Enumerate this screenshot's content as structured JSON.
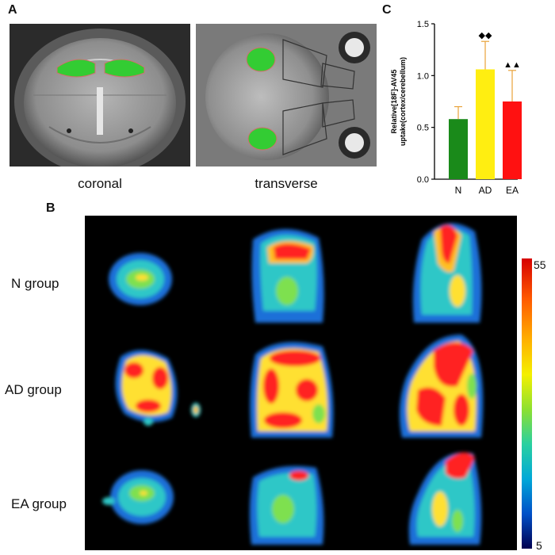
{
  "panels": {
    "a": {
      "letter": "A",
      "captions": [
        "coronal",
        "transverse"
      ]
    },
    "b": {
      "letter": "B",
      "rows": [
        "N group",
        "AD group",
        "EA group"
      ],
      "colorbar": {
        "max": "55",
        "min": "5"
      }
    },
    "c": {
      "letter": "C"
    }
  },
  "colors": {
    "roi": "#33cc33",
    "n": "#1a8a1a",
    "ad": "#ffee11",
    "ea": "#ff1111",
    "error": "#e8a23a"
  },
  "chart_data": {
    "type": "bar",
    "categories": [
      "N",
      "AD",
      "EA"
    ],
    "values": [
      0.58,
      1.06,
      0.75
    ],
    "errors": [
      0.12,
      0.27,
      0.3
    ],
    "annotations": [
      "",
      "◆◆",
      "▲▲"
    ],
    "ylabel": "Relative[18F]-AV45 uptake(cortex/cerebellum)",
    "ylim": [
      0,
      1.5
    ],
    "yticks": [
      "0.0",
      "0.5",
      "1.0",
      "1.5"
    ]
  }
}
